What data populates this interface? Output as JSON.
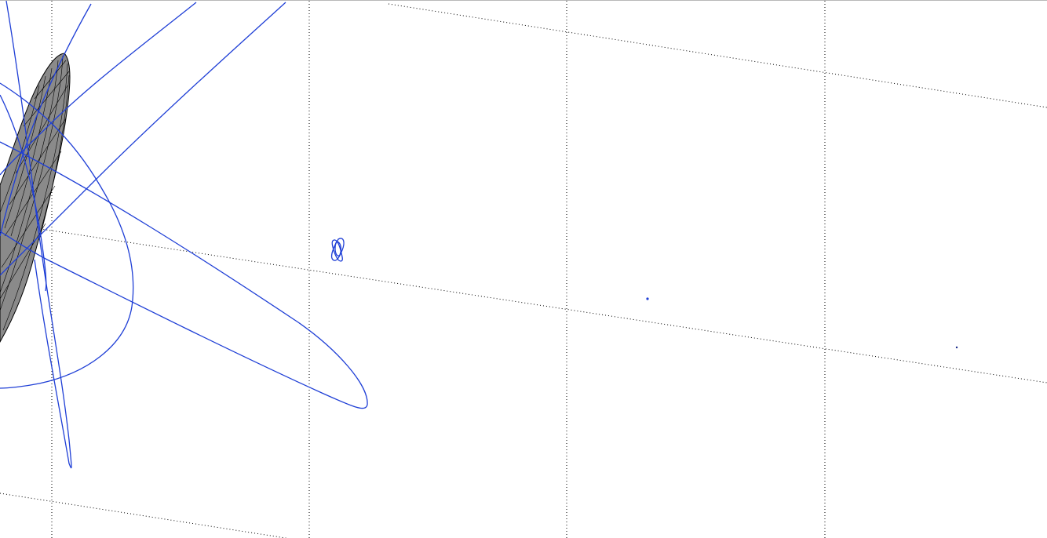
{
  "viewer": {
    "background": "#ffffff",
    "grid": {
      "visible": true,
      "style": "dotted",
      "color": "#000000"
    },
    "orbit_color": "#1f3fd6",
    "body_fill": "#8a8a8a",
    "body_edge": "#000000",
    "objects": [
      "central-body-mesh",
      "orbit-trajectory",
      "small-orbit-rosette",
      "distant-point-a",
      "distant-point-b"
    ]
  }
}
